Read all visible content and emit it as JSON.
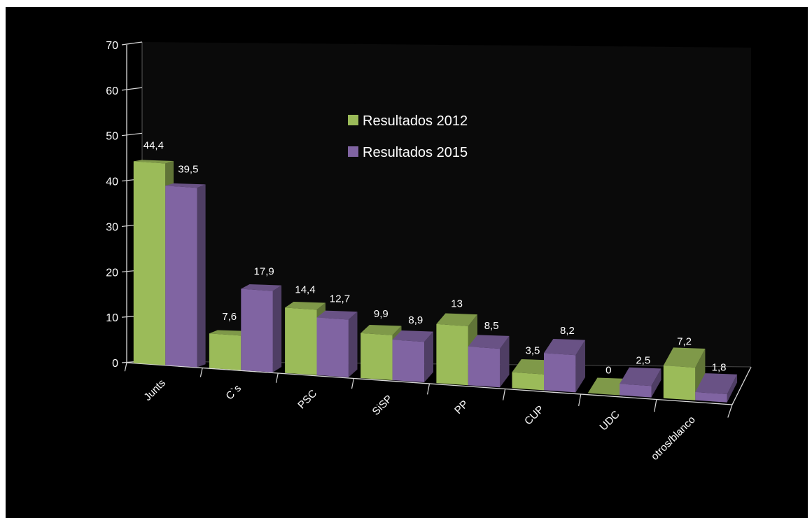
{
  "chart_data": {
    "type": "bar",
    "style": "3d-clustered-column",
    "categories": [
      "Junts",
      "C`s",
      "PSC",
      "SiSP",
      "PP",
      "CUP",
      "UDC",
      "otros/blanco"
    ],
    "series": [
      {
        "name": "Resultados 2012",
        "values": [
          44.4,
          7.6,
          14.4,
          9.9,
          13,
          3.5,
          0,
          7.2
        ],
        "labels": [
          "44,4",
          "7,6",
          "14,4",
          "9,9",
          "13",
          "3,5",
          "0",
          "7,2"
        ],
        "color": "#9bbb59"
      },
      {
        "name": "Resultados 2015",
        "values": [
          39.5,
          17.9,
          12.7,
          8.9,
          8.5,
          8.2,
          2.5,
          1.8
        ],
        "labels": [
          "39,5",
          "17,9",
          "12,7",
          "8,9",
          "8,5",
          "8,2",
          "2,5",
          "1,8"
        ],
        "color": "#8064a2"
      }
    ],
    "ylim": [
      0,
      70
    ],
    "yticks": [
      "0",
      "10",
      "20",
      "30",
      "40",
      "50",
      "60",
      "70"
    ],
    "title": "",
    "xlabel": "",
    "ylabel": "",
    "grid": false,
    "legend_position": "top-center",
    "background": "#000000",
    "axis_color": "#d9d9d9"
  }
}
